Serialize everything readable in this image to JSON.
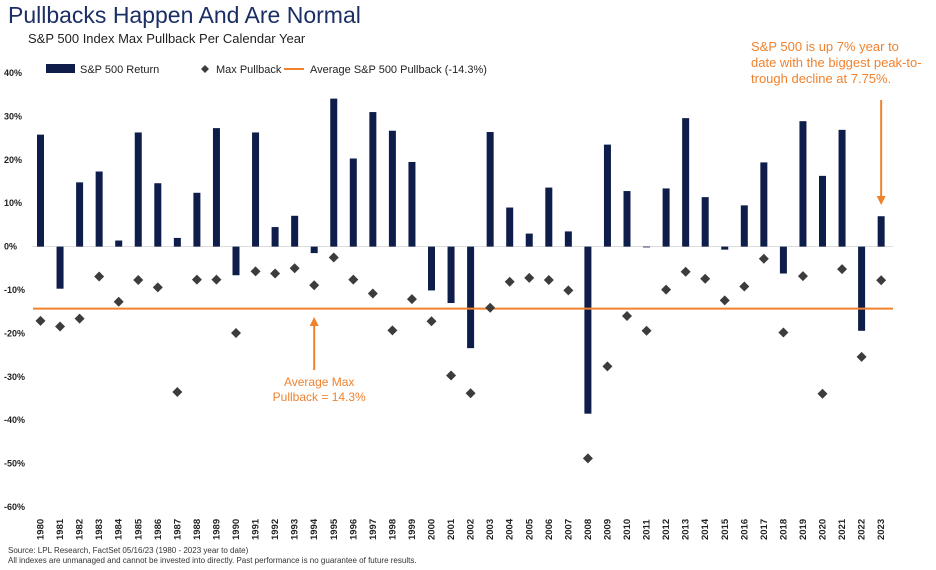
{
  "chart_data": {
    "type": "bar",
    "title": "Pullbacks Happen And Are Normal",
    "subtitle": "S&P 500 Index Max Pullback Per Calendar Year",
    "categories": [
      "1980",
      "1981",
      "1982",
      "1983",
      "1984",
      "1985",
      "1986",
      "1987",
      "1988",
      "1989",
      "1990",
      "1991",
      "1992",
      "1993",
      "1994",
      "1995",
      "1996",
      "1997",
      "1998",
      "1999",
      "2000",
      "2001",
      "2002",
      "2003",
      "2004",
      "2005",
      "2006",
      "2007",
      "2008",
      "2009",
      "2010",
      "2011",
      "2012",
      "2013",
      "2014",
      "2015",
      "2016",
      "2017",
      "2018",
      "2019",
      "2020",
      "2021",
      "2022",
      "2023"
    ],
    "series": [
      {
        "name": "S&P 500 Return",
        "kind": "bar",
        "color": "#0e1d4a",
        "values": [
          25.8,
          -9.7,
          14.8,
          17.3,
          1.4,
          26.3,
          14.6,
          2.0,
          12.4,
          27.3,
          -6.6,
          26.3,
          4.5,
          7.1,
          -1.5,
          34.1,
          20.3,
          31.0,
          26.7,
          19.5,
          -10.1,
          -13.0,
          -23.4,
          26.4,
          9.0,
          3.0,
          13.6,
          3.5,
          -38.5,
          23.5,
          12.8,
          0.0,
          13.4,
          29.6,
          11.4,
          -0.7,
          9.5,
          19.4,
          -6.2,
          28.9,
          16.3,
          26.9,
          -19.4,
          7.0
        ]
      },
      {
        "name": "Max Pullback",
        "kind": "marker",
        "color": "#3c3c3c",
        "values": [
          -17.1,
          -18.4,
          -16.6,
          -6.9,
          -12.7,
          -7.7,
          -9.4,
          -33.5,
          -7.6,
          -7.6,
          -19.9,
          -5.7,
          -6.2,
          -5.0,
          -8.9,
          -2.5,
          -7.6,
          -10.8,
          -19.3,
          -12.1,
          -17.2,
          -29.7,
          -33.8,
          -14.1,
          -8.1,
          -7.2,
          -7.7,
          -10.1,
          -48.8,
          -27.6,
          -16.0,
          -19.4,
          -9.9,
          -5.8,
          -7.4,
          -12.4,
          -9.2,
          -2.8,
          -19.8,
          -6.8,
          -33.9,
          -5.2,
          -25.4,
          -7.75
        ]
      },
      {
        "name": "Average S&P 500 Pullback (-14.3%)",
        "kind": "line",
        "color": "#f0822e",
        "value": -14.3
      }
    ],
    "ylim": [
      -60,
      40
    ],
    "yticks": [
      "40%",
      "30%",
      "20%",
      "10%",
      "0%",
      "-10%",
      "-20%",
      "-30%",
      "-40%",
      "-50%",
      "-60%"
    ],
    "ytick_values": [
      40,
      30,
      20,
      10,
      0,
      -10,
      -20,
      -30,
      -40,
      -50,
      -60
    ],
    "legend": {
      "position": "top-left"
    },
    "annotations": [
      {
        "text_lines": [
          "S&P 500 is up 7% year to",
          "date with the biggest peak-to-",
          "trough decline at 7.75%."
        ],
        "color": "#f0822e",
        "target_category": "2023"
      },
      {
        "text_lines": [
          "Average Max",
          "Pullback = 14.3%"
        ],
        "color": "#f0822e",
        "target_category": "1994"
      }
    ]
  },
  "footer": {
    "source": "Source: LPL Research, FactSet 05/16/23 (1980 - 2023 year to date)",
    "disclaimer": "All indexes are unmanaged and cannot be invested into directly. Past performance is no guarantee of future results."
  }
}
